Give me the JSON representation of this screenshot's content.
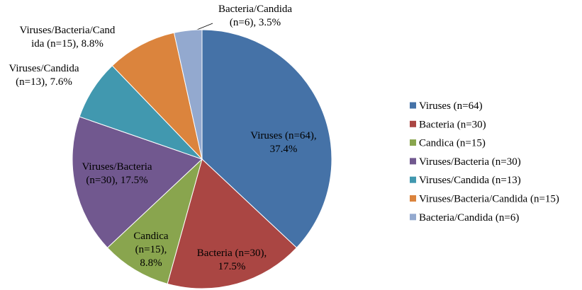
{
  "chart_data": {
    "type": "pie",
    "categories": [
      "Viruses (n=64)",
      "Bacteria (n=30)",
      "Candica (n=15)",
      "Viruses/Bacteria (n=30)",
      "Viruses/Candida (n=13)",
      "Viruses/Bacteria/Candida (n=15)",
      "Bacteria/Candida (n=6)"
    ],
    "values": [
      37.4,
      17.5,
      8.8,
      17.5,
      7.6,
      8.8,
      3.5
    ],
    "value_labels": [
      "Viruses (n=64),\n37.4%",
      "Bacteria (n=30),\n17.5%",
      "Candica\n(n=15),\n8.8%",
      "Viruses/Bacteria\n(n=30), 17.5%",
      "Viruses/Candida\n(n=13), 7.6%",
      "Viruses/Bacteria/Cand\nida (n=15), 8.8%",
      "Bacteria/Candida\n(n=6), 3.5%"
    ],
    "colors": [
      "#4572A7",
      "#AA4643",
      "#89A54E",
      "#71588F",
      "#4198AF",
      "#DB843D",
      "#93A9CF"
    ],
    "legend": "right"
  }
}
